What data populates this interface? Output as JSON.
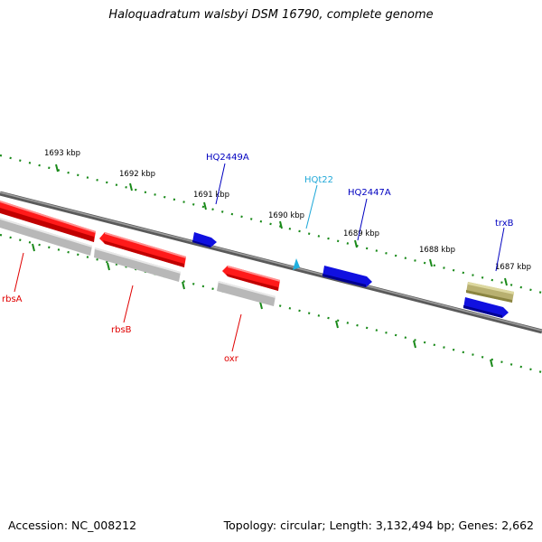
{
  "title": "Haloquadratum walsbyi DSM 16790, complete genome",
  "footer": {
    "accession": "Accession: NC_008212",
    "summary": "Topology: circular; Length: 3,132,494 bp; Genes: 2,662"
  },
  "scale_labels": [
    "1693 kbp",
    "1692 kbp",
    "1691 kbp",
    "1690 kbp",
    "1689 kbp",
    "1688 kbp",
    "1687 kbp"
  ],
  "gene_labels": {
    "HQ2449A": "HQ2449A",
    "HQt22": "HQt22",
    "HQ2447A": "HQ2447A",
    "trxB": "trxB",
    "rbsA": "rbsA",
    "rbsB": "rbsB",
    "oxr": "oxr"
  },
  "colors": {
    "backbone": "#808080",
    "tick": "#1a8a1a",
    "red_feature": "#ff1a1a",
    "blue_feature": "#1010e0",
    "gray_feature": "#b8b8b8",
    "olive_feature": "#b8b070",
    "trna_feature": "#20b0e0",
    "label_red": "#e00000",
    "label_blue": "#0000c0",
    "label_cyan": "#20a8d8"
  }
}
